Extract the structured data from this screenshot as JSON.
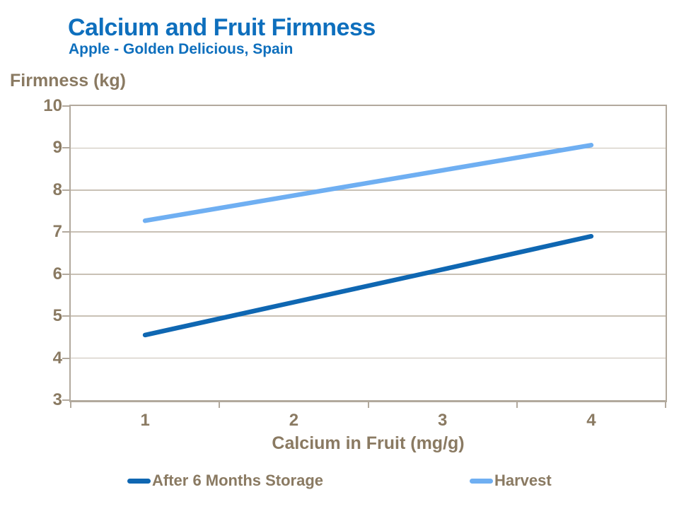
{
  "header": {
    "title": "Calcium and Fruit Firmness",
    "subtitle": "Apple - Golden Delicious, Spain"
  },
  "chart_data": {
    "type": "line",
    "title": "Calcium and Fruit Firmness",
    "subtitle": "Apple - Golden Delicious, Spain",
    "xlabel": "Calcium in Fruit (mg/g)",
    "ylabel": "Firmness (kg)",
    "categories": [
      1,
      2,
      3,
      4
    ],
    "x_tick_labels": [
      "1",
      "2",
      "3",
      "4"
    ],
    "y_tick_labels": [
      "10",
      "9",
      "8",
      "7",
      "6",
      "5",
      "4",
      "3"
    ],
    "ylim": [
      3,
      10
    ],
    "grid": "horizontal",
    "legend_position": "bottom",
    "series": [
      {
        "name": "After 6 Months Storage",
        "color": "#0F67B2",
        "values": [
          4.55,
          5.33,
          6.11,
          6.9
        ]
      },
      {
        "name": "Harvest",
        "color": "#6FAFF2",
        "values": [
          7.27,
          7.87,
          8.47,
          9.07
        ]
      }
    ]
  },
  "colors": {
    "background": "#FFFFFF",
    "title_blue": "#0E6FBD",
    "axis_text_brown": "#8A7A62",
    "axis_line_tan": "#B2A99D",
    "gridline_tan": "#C9C1B5",
    "storage_line": "#0F67B2",
    "harvest_line": "#6FAFF2"
  }
}
